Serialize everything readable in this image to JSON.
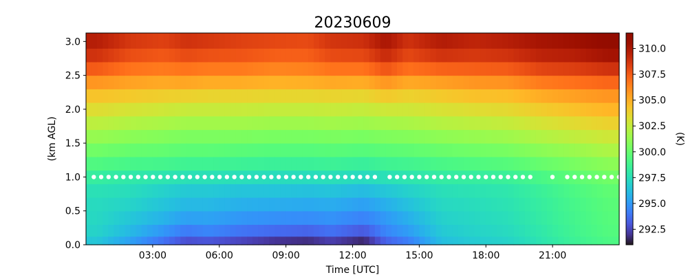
{
  "chart_data": {
    "type": "heatmap",
    "title": "20230609",
    "xlabel": "Time [UTC]",
    "ylabel": "(km AGL)",
    "colorbar_label": "(K)",
    "colormap": "turbo",
    "x_unit": "hours UTC",
    "xlim": [
      0,
      24
    ],
    "ylim": [
      0,
      3.125
    ],
    "x_ticks": [
      3,
      6,
      9,
      12,
      15,
      18,
      21
    ],
    "x_tick_labels": [
      "03:00",
      "06:00",
      "09:00",
      "12:00",
      "15:00",
      "18:00",
      "21:00"
    ],
    "y_ticks": [
      0.0,
      0.5,
      1.0,
      1.5,
      2.0,
      2.5,
      3.0
    ],
    "y_tick_labels": [
      "0.0",
      "0.5",
      "1.0",
      "1.5",
      "2.0",
      "2.5",
      "3.0"
    ],
    "clim": [
      291.0,
      311.5
    ],
    "colorbar_ticks": [
      292.5,
      295.0,
      297.5,
      300.0,
      302.5,
      305.0,
      307.5,
      310.0
    ],
    "colorbar_tick_labels": [
      "292.5",
      "295.0",
      "297.5",
      "300.0",
      "302.5",
      "305.0",
      "307.5",
      "310.0"
    ],
    "cloud_base_markers": {
      "height_km": 1.0,
      "color": "#ffffff",
      "start_hour": 0.35,
      "step_hours": 0.333,
      "gaps_hours": [
        [
          13.2,
          13.55
        ],
        [
          20.25,
          20.85
        ],
        [
          21.05,
          21.6
        ]
      ]
    },
    "heights_km": [
      0.05,
      0.2,
      0.4,
      0.6,
      0.8,
      1.0,
      1.2,
      1.4,
      1.6,
      1.8,
      2.0,
      2.2,
      2.4,
      2.6,
      2.8,
      3.0
    ],
    "profile_times_hours": [
      0.5,
      2,
      3.5,
      4.5,
      5.5,
      7,
      8.5,
      10,
      11,
      12.5,
      13.5,
      14.5,
      16,
      17.5,
      19,
      20.5,
      22,
      23.5
    ],
    "temperature_profiles_K": [
      [
        296.5,
        297.0,
        297.2,
        297.3,
        297.6,
        298.3,
        299.3,
        300.3,
        301.3,
        302.3,
        303.3,
        304.3,
        305.8,
        307.5,
        308.8,
        309.6
      ],
      [
        295.2,
        296.0,
        296.5,
        297.0,
        297.4,
        298.0,
        299.0,
        300.0,
        301.0,
        302.0,
        303.0,
        304.1,
        305.4,
        306.8,
        307.9,
        308.6
      ],
      [
        293.8,
        294.9,
        295.8,
        296.4,
        296.9,
        297.8,
        298.9,
        299.9,
        300.8,
        301.8,
        302.8,
        303.9,
        305.2,
        306.6,
        307.6,
        308.3
      ],
      [
        292.8,
        294.1,
        295.2,
        296.0,
        296.6,
        297.6,
        298.7,
        299.7,
        300.6,
        301.6,
        302.6,
        303.8,
        305.3,
        306.8,
        308.0,
        308.8
      ],
      [
        293.0,
        294.4,
        295.3,
        296.0,
        296.6,
        297.6,
        298.7,
        299.7,
        300.6,
        301.6,
        302.6,
        303.7,
        305.1,
        306.6,
        307.8,
        308.6
      ],
      [
        292.5,
        293.9,
        294.9,
        295.7,
        296.4,
        297.5,
        298.6,
        299.6,
        300.6,
        301.6,
        302.6,
        303.7,
        305.1,
        306.6,
        307.7,
        308.3
      ],
      [
        292.0,
        293.6,
        294.7,
        295.6,
        296.4,
        297.4,
        298.5,
        299.5,
        300.5,
        301.5,
        302.5,
        303.6,
        304.9,
        306.3,
        307.4,
        308.1
      ],
      [
        291.8,
        293.4,
        294.6,
        295.5,
        296.3,
        297.4,
        298.5,
        299.5,
        300.5,
        301.5,
        302.5,
        303.6,
        305.0,
        306.4,
        307.4,
        308.0
      ],
      [
        292.3,
        293.8,
        294.8,
        295.6,
        296.4,
        297.5,
        298.6,
        299.6,
        300.6,
        301.6,
        302.6,
        303.7,
        305.2,
        306.8,
        308.0,
        308.7
      ],
      [
        291.6,
        293.1,
        294.3,
        295.2,
        296.1,
        297.3,
        298.4,
        299.5,
        300.5,
        301.5,
        302.5,
        303.6,
        305.1,
        306.8,
        308.1,
        308.9
      ],
      [
        293.4,
        294.4,
        295.0,
        295.7,
        296.5,
        297.6,
        298.7,
        299.7,
        300.7,
        301.7,
        302.8,
        304.1,
        305.8,
        307.7,
        309.1,
        310.0
      ],
      [
        294.2,
        295.1,
        295.7,
        296.3,
        296.9,
        297.8,
        298.8,
        299.8,
        300.8,
        301.8,
        302.8,
        303.8,
        305.2,
        306.9,
        308.1,
        308.8
      ],
      [
        296.2,
        296.6,
        296.9,
        297.2,
        297.5,
        298.2,
        299.1,
        300.1,
        301.1,
        302.1,
        303.1,
        304.1,
        305.5,
        307.3,
        308.8,
        309.7
      ],
      [
        296.7,
        297.0,
        297.2,
        297.4,
        297.7,
        298.3,
        299.3,
        300.3,
        301.3,
        302.3,
        303.3,
        304.4,
        305.8,
        307.4,
        308.6,
        309.3
      ],
      [
        297.0,
        297.3,
        297.5,
        297.7,
        297.9,
        298.5,
        299.5,
        300.5,
        301.5,
        302.5,
        303.5,
        304.5,
        305.9,
        307.5,
        308.8,
        309.6
      ],
      [
        297.8,
        298.0,
        298.2,
        298.3,
        298.5,
        299.1,
        300.0,
        301.0,
        302.0,
        303.0,
        304.0,
        305.1,
        306.6,
        308.2,
        309.4,
        310.1
      ],
      [
        298.6,
        298.8,
        298.9,
        299.0,
        299.2,
        299.7,
        300.5,
        301.4,
        302.4,
        303.4,
        304.4,
        305.5,
        306.9,
        308.4,
        309.6,
        310.4
      ],
      [
        299.2,
        299.4,
        299.5,
        299.6,
        299.8,
        300.3,
        301.0,
        301.9,
        302.8,
        303.8,
        304.8,
        305.8,
        307.2,
        308.8,
        310.2,
        311.0
      ]
    ]
  }
}
